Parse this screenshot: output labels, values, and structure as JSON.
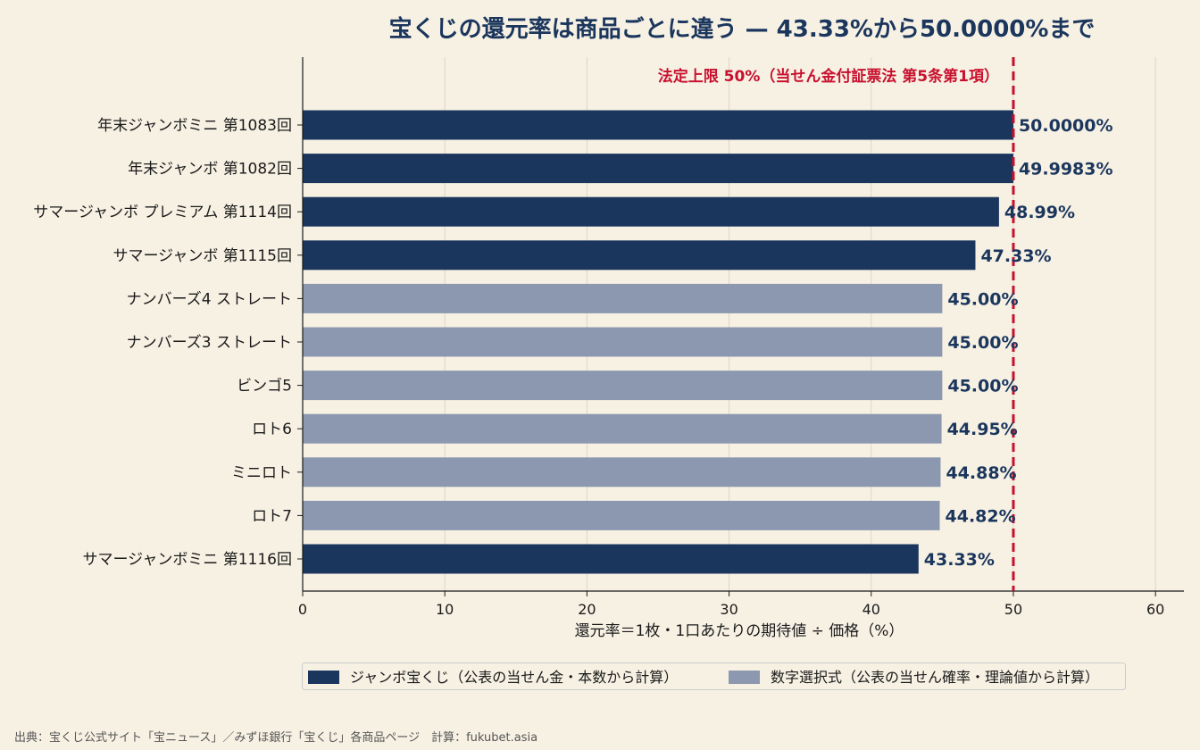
{
  "colors": {
    "background": "#f7f1e4",
    "jumbo": "#1b365d",
    "numbers": "#8c98b0",
    "limit": "#c8102e",
    "grid": "#ddd6c6"
  },
  "chart_data": {
    "type": "bar",
    "orientation": "horizontal",
    "title": "宝くじの還元率は商品ごとに違う — 43.33%から50.0000%まで",
    "xlabel": "還元率＝1枚・1口あたりの期待値 ÷ 価格（%）",
    "xlim": [
      0,
      62
    ],
    "xticks": [
      0,
      10,
      20,
      30,
      40,
      50,
      60
    ],
    "grid": "vertical",
    "categories": [
      "年末ジャンボミニ 第1083回",
      "年末ジャンボ 第1082回",
      "サマージャンボ プレミアム 第1114回",
      "サマージャンボ 第1115回",
      "ナンバーズ4 ストレート",
      "ナンバーズ3 ストレート",
      "ビンゴ5",
      "ロト6",
      "ミニロト",
      "ロト7",
      "サマージャンボミニ 第1116回"
    ],
    "values": [
      50.0,
      49.9983,
      48.99,
      47.33,
      45.0,
      45.0,
      45.0,
      44.95,
      44.88,
      44.82,
      43.33
    ],
    "value_labels": [
      "50.0000%",
      "49.9983%",
      "48.99%",
      "47.33%",
      "45.00%",
      "45.00%",
      "45.00%",
      "44.95%",
      "44.88%",
      "44.82%",
      "43.33%"
    ],
    "groups": [
      "jumbo",
      "jumbo",
      "jumbo",
      "jumbo",
      "numbers",
      "numbers",
      "numbers",
      "numbers",
      "numbers",
      "numbers",
      "jumbo"
    ],
    "reference_line": {
      "value": 50,
      "label": "法定上限 50%（当せん金付証票法 第5条第1項）"
    },
    "legend": {
      "placement": "bottom",
      "items": [
        {
          "group": "jumbo",
          "label": "ジャンボ宝くじ（公表の当せん金・本数から計算）"
        },
        {
          "group": "numbers",
          "label": "数字選択式（公表の当せん確率・理論値から計算）"
        }
      ]
    }
  },
  "source": "出典：宝くじ公式サイト「宝ニュース」／みずほ銀行「宝くじ」各商品ページ　計算：fukubet.asia"
}
